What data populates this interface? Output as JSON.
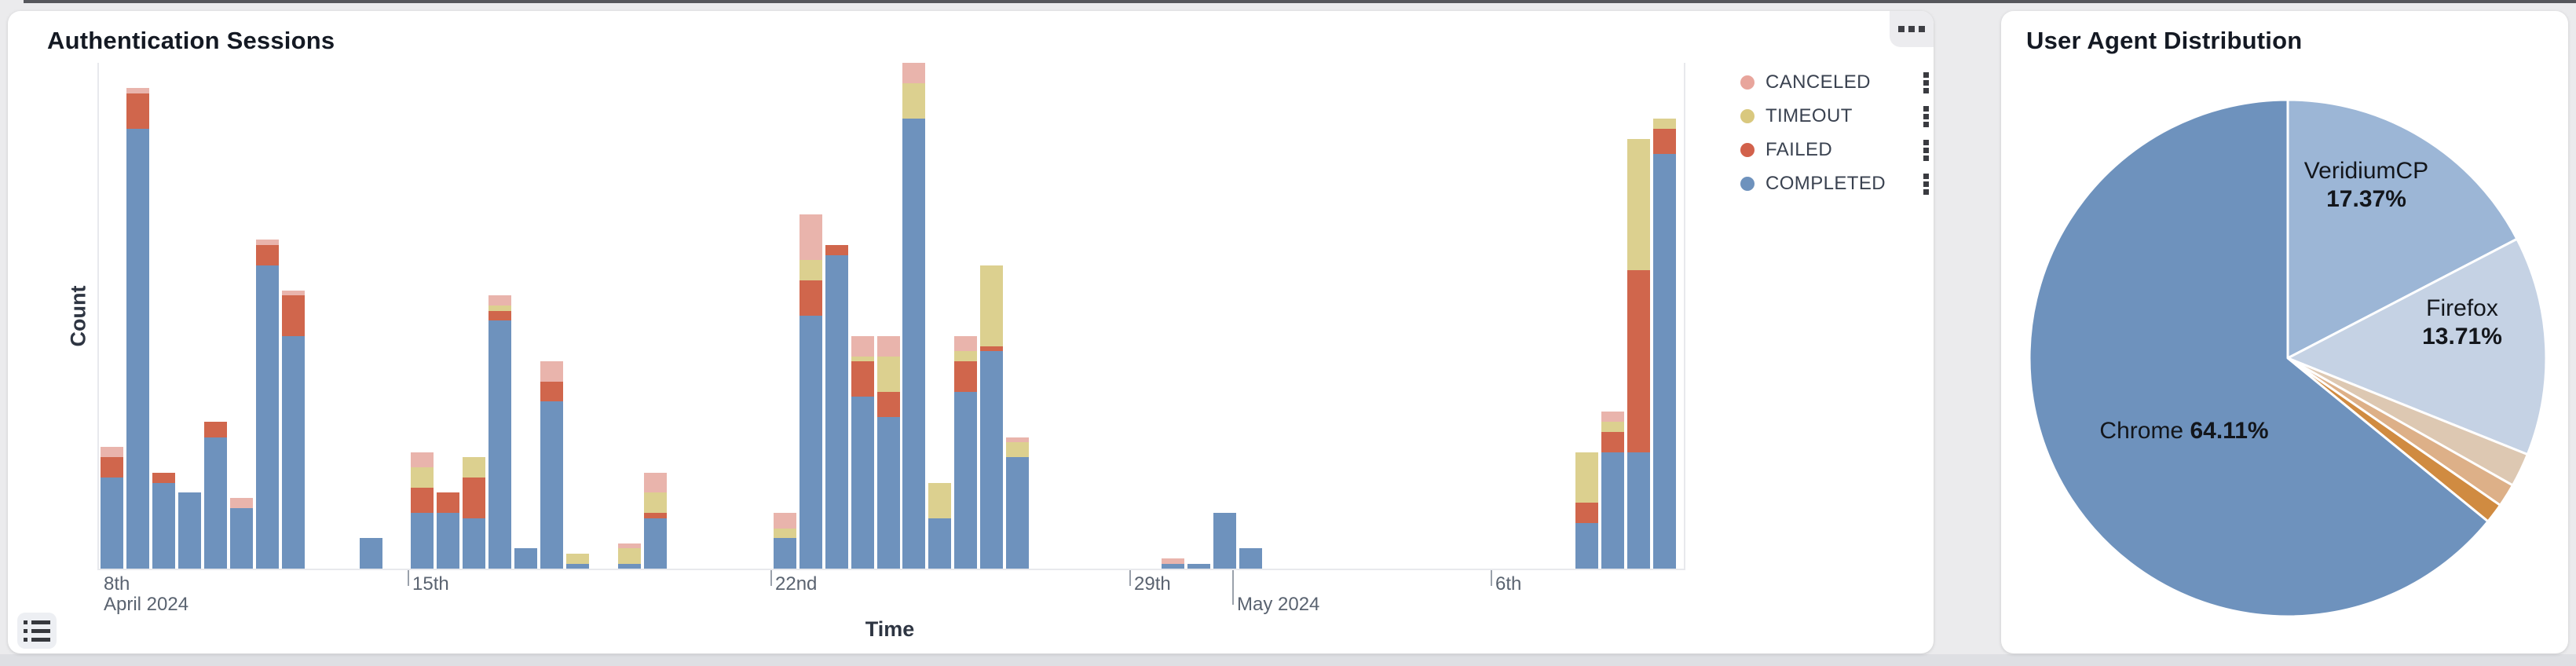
{
  "auth_panel": {
    "title": "Authentication Sessions",
    "y_axis_label": "Count",
    "x_axis_label": "Time",
    "corner_menu_icon": "three-squares-horizontal",
    "legend": [
      {
        "label": "CANCELED",
        "dot_color": "#e8a59c",
        "menu_icon": "three-squares-vertical"
      },
      {
        "label": "TIMEOUT",
        "dot_color": "#d9c87e",
        "menu_icon": "three-squares-vertical"
      },
      {
        "label": "FAILED",
        "dot_color": "#d2614b",
        "menu_icon": "three-squares-vertical"
      },
      {
        "label": "COMPLETED",
        "dot_color": "#6e92bd",
        "menu_icon": "three-squares-vertical"
      }
    ],
    "chart_data": {
      "type": "bar",
      "stacked": true,
      "bin_size": "12h",
      "title": "Authentication Sessions",
      "xlabel": "Time",
      "ylabel": "Count",
      "ylim": [
        0,
        100
      ],
      "grid": false,
      "series_colors": {
        "COMPLETED": "#6e92bd",
        "FAILED": "#d0664c",
        "TIMEOUT": "#dcd08f",
        "CANCELED": "#e9b4ac"
      },
      "stack_order_bottom_to_top": [
        "COMPLETED",
        "FAILED",
        "TIMEOUT",
        "CANCELED"
      ],
      "x_ticks": [
        {
          "x": 2,
          "line": false,
          "tall": false,
          "label1": "8th",
          "label2": "April 2024"
        },
        {
          "x": 395,
          "line": true,
          "tall": false,
          "label1": "15th",
          "label2": ""
        },
        {
          "x": 857,
          "line": true,
          "tall": false,
          "label1": "22nd",
          "label2": ""
        },
        {
          "x": 1314,
          "line": true,
          "tall": false,
          "label1": "29th",
          "label2": ""
        },
        {
          "x": 1445,
          "line": true,
          "tall": true,
          "label1": "",
          "label2": "May 2024"
        },
        {
          "x": 1774,
          "line": true,
          "tall": false,
          "label1": "6th",
          "label2": ""
        }
      ],
      "bars": [
        {
          "time": "Apr 9 AM",
          "slot": 0,
          "COMPLETED": 18,
          "FAILED": 4,
          "TIMEOUT": 0,
          "CANCELED": 2
        },
        {
          "time": "Apr 9 PM",
          "slot": 1,
          "COMPLETED": 87,
          "FAILED": 7,
          "TIMEOUT": 0,
          "CANCELED": 1
        },
        {
          "time": "Apr 10 AM",
          "slot": 2,
          "COMPLETED": 17,
          "FAILED": 2,
          "TIMEOUT": 0,
          "CANCELED": 0
        },
        {
          "time": "Apr 10 PM",
          "slot": 3,
          "COMPLETED": 15,
          "FAILED": 0,
          "TIMEOUT": 0,
          "CANCELED": 0
        },
        {
          "time": "Apr 11 AM",
          "slot": 4,
          "COMPLETED": 26,
          "FAILED": 3,
          "TIMEOUT": 0,
          "CANCELED": 0
        },
        {
          "time": "Apr 11 PM",
          "slot": 5,
          "COMPLETED": 12,
          "FAILED": 0,
          "TIMEOUT": 0,
          "CANCELED": 2
        },
        {
          "time": "Apr 12 AM",
          "slot": 6,
          "COMPLETED": 60,
          "FAILED": 4,
          "TIMEOUT": 0,
          "CANCELED": 1
        },
        {
          "time": "Apr 12 PM",
          "slot": 7,
          "COMPLETED": 46,
          "FAILED": 8,
          "TIMEOUT": 0,
          "CANCELED": 1
        },
        {
          "time": "Apr 14 AM",
          "slot": 10,
          "COMPLETED": 6,
          "FAILED": 0,
          "TIMEOUT": 0,
          "CANCELED": 0
        },
        {
          "time": "Apr 15 AM",
          "slot": 12,
          "COMPLETED": 11,
          "FAILED": 5,
          "TIMEOUT": 4,
          "CANCELED": 3
        },
        {
          "time": "Apr 15 PM",
          "slot": 13,
          "COMPLETED": 11,
          "FAILED": 4,
          "TIMEOUT": 0,
          "CANCELED": 0
        },
        {
          "time": "Apr 16 AM",
          "slot": 14,
          "COMPLETED": 10,
          "FAILED": 8,
          "TIMEOUT": 4,
          "CANCELED": 0
        },
        {
          "time": "Apr 16 PM",
          "slot": 15,
          "COMPLETED": 49,
          "FAILED": 2,
          "TIMEOUT": 1,
          "CANCELED": 2
        },
        {
          "time": "Apr 17 AM",
          "slot": 16,
          "COMPLETED": 4,
          "FAILED": 0,
          "TIMEOUT": 0,
          "CANCELED": 0
        },
        {
          "time": "Apr 17 PM",
          "slot": 17,
          "COMPLETED": 33,
          "FAILED": 4,
          "TIMEOUT": 0,
          "CANCELED": 4
        },
        {
          "time": "Apr 18 AM",
          "slot": 18,
          "COMPLETED": 1,
          "FAILED": 0,
          "TIMEOUT": 2,
          "CANCELED": 0
        },
        {
          "time": "Apr 19 AM",
          "slot": 20,
          "COMPLETED": 1,
          "FAILED": 0,
          "TIMEOUT": 3,
          "CANCELED": 1
        },
        {
          "time": "Apr 19 PM",
          "slot": 21,
          "COMPLETED": 10,
          "FAILED": 1,
          "TIMEOUT": 4,
          "CANCELED": 4
        },
        {
          "time": "Apr 22 AM",
          "slot": 26,
          "COMPLETED": 6,
          "FAILED": 0,
          "TIMEOUT": 2,
          "CANCELED": 3
        },
        {
          "time": "Apr 22 PM",
          "slot": 27,
          "COMPLETED": 50,
          "FAILED": 7,
          "TIMEOUT": 4,
          "CANCELED": 9
        },
        {
          "time": "Apr 23 AM",
          "slot": 28,
          "COMPLETED": 62,
          "FAILED": 2,
          "TIMEOUT": 0,
          "CANCELED": 0
        },
        {
          "time": "Apr 23 PM",
          "slot": 29,
          "COMPLETED": 34,
          "FAILED": 7,
          "TIMEOUT": 1,
          "CANCELED": 4
        },
        {
          "time": "Apr 24 AM",
          "slot": 30,
          "COMPLETED": 30,
          "FAILED": 5,
          "TIMEOUT": 7,
          "CANCELED": 4
        },
        {
          "time": "Apr 24 PM",
          "slot": 31,
          "COMPLETED": 89,
          "FAILED": 0,
          "TIMEOUT": 7,
          "CANCELED": 4
        },
        {
          "time": "Apr 25 AM",
          "slot": 32,
          "COMPLETED": 10,
          "FAILED": 0,
          "TIMEOUT": 7,
          "CANCELED": 0
        },
        {
          "time": "Apr 25 PM",
          "slot": 33,
          "COMPLETED": 35,
          "FAILED": 6,
          "TIMEOUT": 2,
          "CANCELED": 3
        },
        {
          "time": "Apr 26 AM",
          "slot": 34,
          "COMPLETED": 43,
          "FAILED": 1,
          "TIMEOUT": 16,
          "CANCELED": 0
        },
        {
          "time": "Apr 26 PM",
          "slot": 35,
          "COMPLETED": 22,
          "FAILED": 0,
          "TIMEOUT": 3,
          "CANCELED": 1
        },
        {
          "time": "Apr 29 PM",
          "slot": 41,
          "COMPLETED": 1,
          "FAILED": 0,
          "TIMEOUT": 0,
          "CANCELED": 1
        },
        {
          "time": "Apr 30 AM",
          "slot": 42,
          "COMPLETED": 1,
          "FAILED": 0,
          "TIMEOUT": 0,
          "CANCELED": 0
        },
        {
          "time": "Apr 30 PM",
          "slot": 43,
          "COMPLETED": 11,
          "FAILED": 0,
          "TIMEOUT": 0,
          "CANCELED": 0
        },
        {
          "time": "May 1 AM",
          "slot": 44,
          "COMPLETED": 4,
          "FAILED": 0,
          "TIMEOUT": 0,
          "CANCELED": 0
        },
        {
          "time": "May 7 AM",
          "slot": 57,
          "COMPLETED": 9,
          "FAILED": 4,
          "TIMEOUT": 10,
          "CANCELED": 0
        },
        {
          "time": "May 7 PM",
          "slot": 58,
          "COMPLETED": 23,
          "FAILED": 4,
          "TIMEOUT": 2,
          "CANCELED": 2
        },
        {
          "time": "May 8 AM",
          "slot": 59,
          "COMPLETED": 23,
          "FAILED": 36,
          "TIMEOUT": 26,
          "CANCELED": 0
        },
        {
          "time": "May 8 PM",
          "slot": 60,
          "COMPLETED": 82,
          "FAILED": 5,
          "TIMEOUT": 2,
          "CANCELED": 0
        }
      ]
    }
  },
  "ua_panel": {
    "title": "User Agent Distribution",
    "chart_data": {
      "type": "pie",
      "title": "User Agent Distribution",
      "start_angle_deg": 0,
      "direction": "clockwise",
      "slices": [
        {
          "label": "VeridiumCP",
          "value": 17.37,
          "color": "#9cb6d6"
        },
        {
          "label": "Firefox",
          "value": 13.71,
          "color": "#c5d2e4"
        },
        {
          "label": "",
          "value": 2.11,
          "color": "#ddc8b2"
        },
        {
          "label": "",
          "value": 1.45,
          "color": "#ddb088"
        },
        {
          "label": "",
          "value": 1.25,
          "color": "#d08b41"
        },
        {
          "label": "Chrome",
          "value": 64.11,
          "color": "#6e92bd"
        }
      ]
    },
    "labels": [
      {
        "name": "VeridiumCP",
        "pct": "17.37%"
      },
      {
        "name": "Firefox",
        "pct": "13.71%"
      },
      {
        "name": "Chrome",
        "pct": "64.11%"
      }
    ]
  }
}
